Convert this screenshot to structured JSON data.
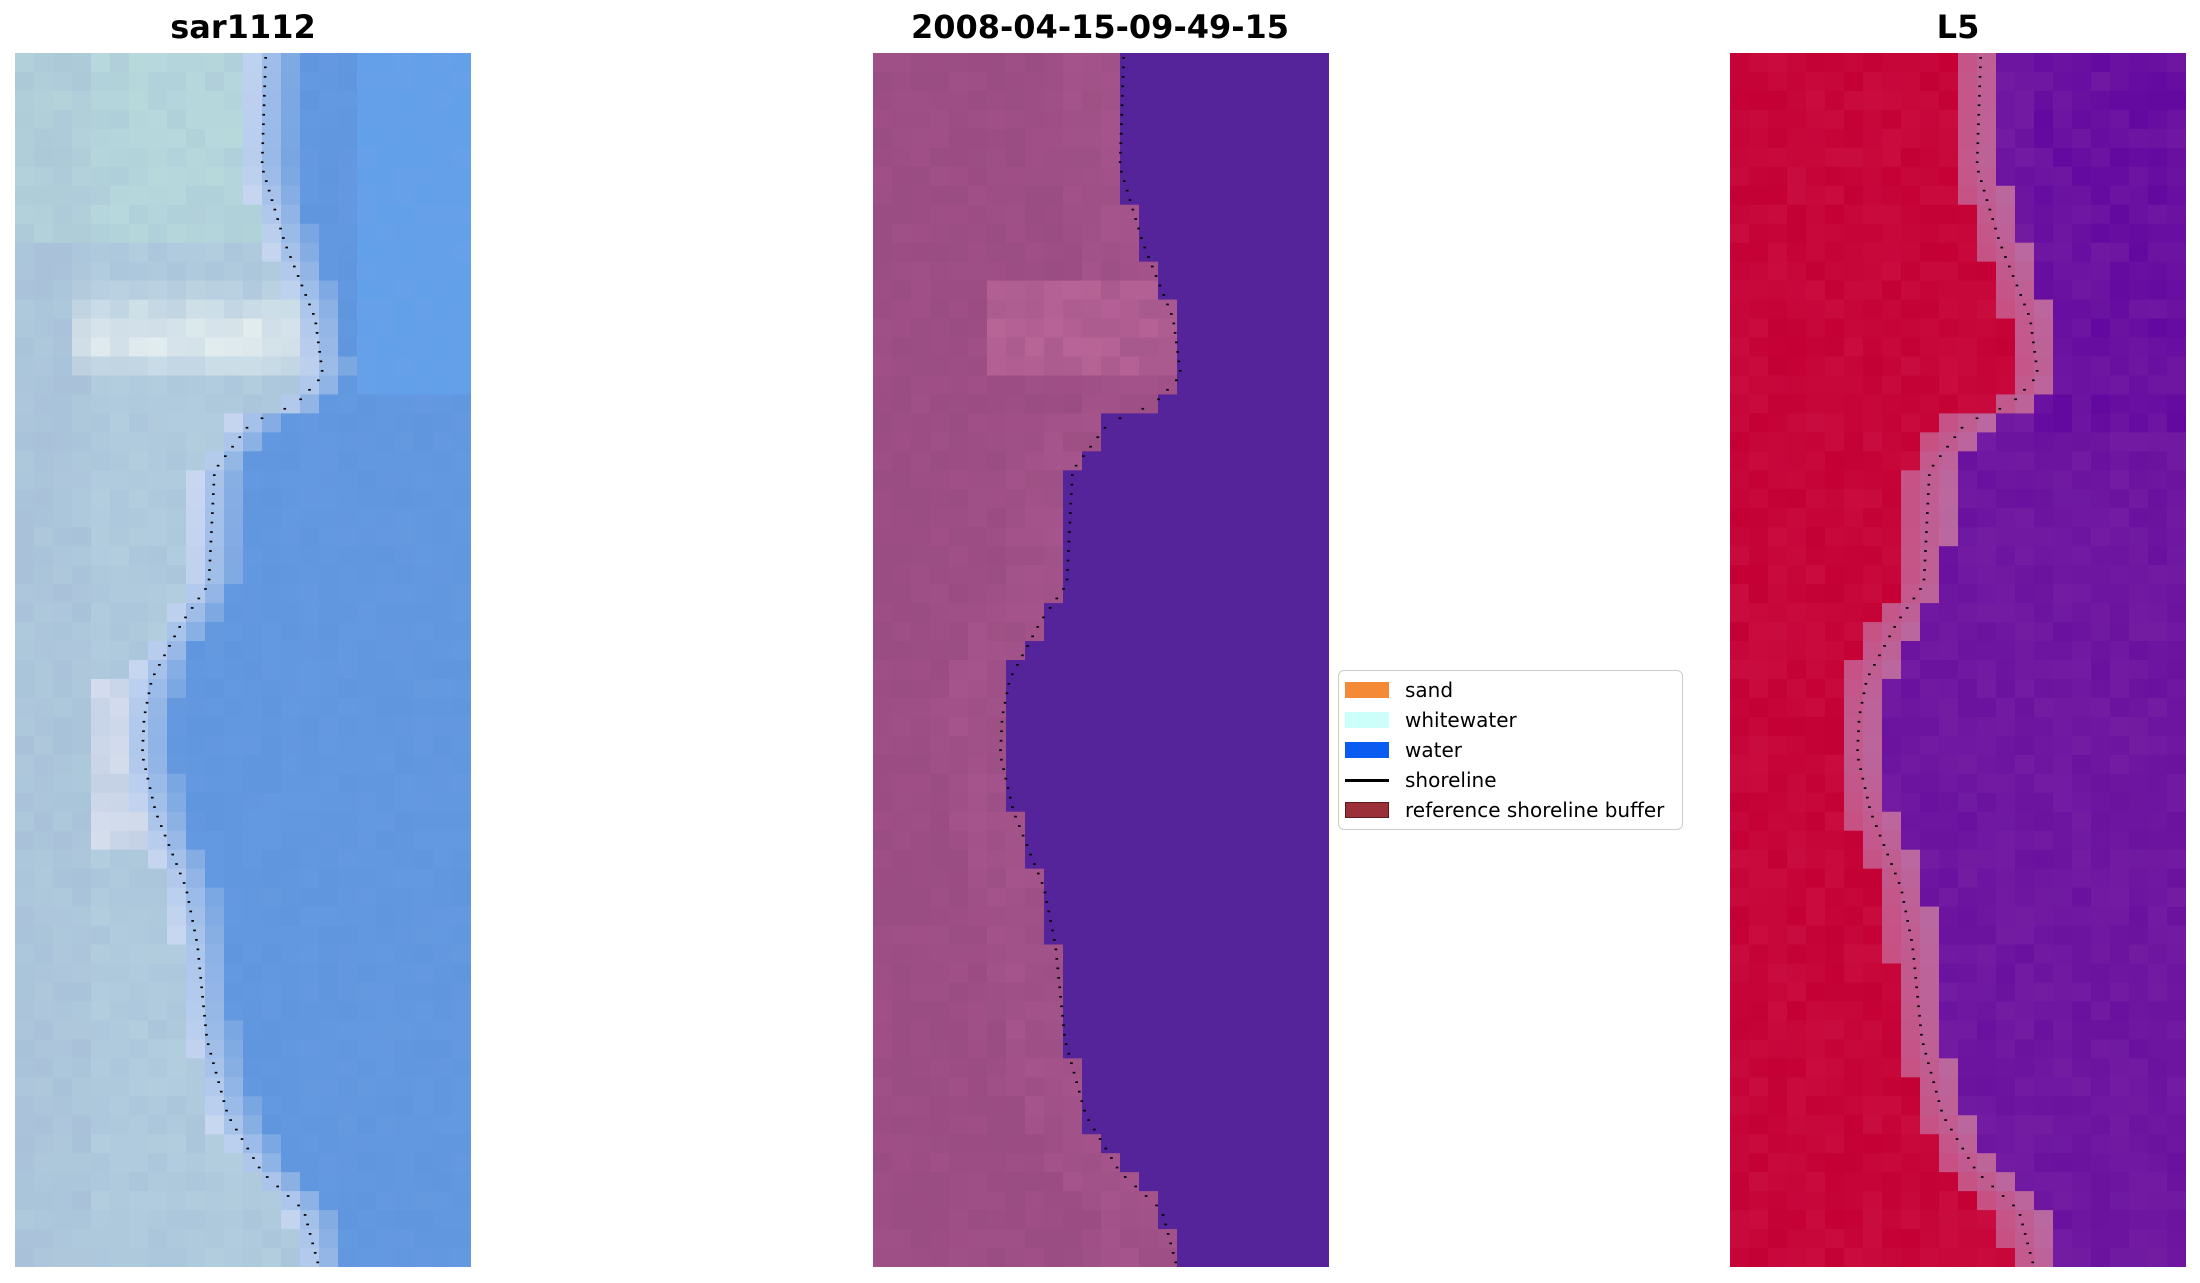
{
  "panels": [
    {
      "title": "sar1112",
      "style": "rgb"
    },
    {
      "title": "2008-04-15-09-49-15",
      "style": "classified"
    },
    {
      "title": "L5",
      "style": "index"
    }
  ],
  "legend": {
    "placement": "center",
    "items": [
      {
        "label": "sand",
        "type": "patch",
        "color": "#F58A36"
      },
      {
        "label": "whitewater",
        "type": "patch",
        "color": "#CCFFF9"
      },
      {
        "label": "water",
        "type": "patch",
        "color": "#0A5CF0"
      },
      {
        "label": "shoreline",
        "type": "line",
        "color": "#000000"
      },
      {
        "label": "reference shoreline buffer",
        "type": "patch",
        "color": "#9C3038"
      }
    ]
  },
  "colors": {
    "water_class": "#55249A",
    "index_land": "#C40034",
    "index_water": "#6A119F"
  }
}
